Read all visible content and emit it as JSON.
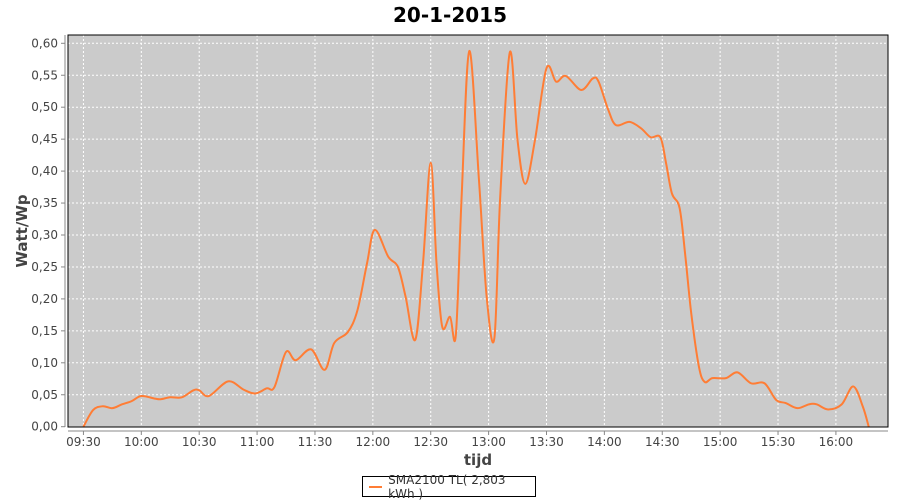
{
  "chart_data": {
    "type": "line",
    "title": "20-1-2015",
    "xlabel": "tijd",
    "ylabel": "Watt/Wp",
    "xlim": [
      "09:22",
      "16:27"
    ],
    "ylim": [
      0,
      0.6
    ],
    "grid": true,
    "legend_placement": "bottom",
    "plot_background": "#cbcbcb",
    "x_ticks": [
      "09:30",
      "10:00",
      "10:30",
      "11:00",
      "11:30",
      "12:00",
      "12:30",
      "13:00",
      "13:30",
      "14:00",
      "14:30",
      "15:00",
      "15:30",
      "16:00"
    ],
    "y_ticks": [
      "0,00",
      "0,05",
      "0,10",
      "0,15",
      "0,20",
      "0,25",
      "0,30",
      "0,35",
      "0,40",
      "0,45",
      "0,50",
      "0,55",
      "0,60"
    ],
    "series": [
      {
        "name": "SMA2100 TL( 2,803 kWh )",
        "color": "#ff7d35",
        "x": [
          "09:30",
          "09:35",
          "09:40",
          "09:45",
          "09:50",
          "09:55",
          "10:00",
          "10:07",
          "10:10",
          "10:15",
          "10:21",
          "10:27",
          "10:30",
          "10:35",
          "10:45",
          "10:53",
          "10:59",
          "11:05",
          "11:09",
          "11:15",
          "11:20",
          "11:28",
          "11:35",
          "11:40",
          "11:47",
          "11:52",
          "11:57",
          "12:01",
          "12:08",
          "12:13",
          "12:17",
          "12:22",
          "12:26",
          "12:30",
          "12:33",
          "12:36",
          "12:40",
          "12:43",
          "12:46",
          "12:50",
          "12:55",
          "12:59",
          "13:03",
          "13:06",
          "13:11",
          "13:15",
          "13:19",
          "13:24",
          "13:30",
          "13:35",
          "13:40",
          "13:48",
          "13:54",
          "13:57",
          "14:02",
          "14:06",
          "14:13",
          "14:19",
          "14:24",
          "14:29",
          "14:32",
          "14:35",
          "14:39",
          "14:42",
          "14:45",
          "14:49",
          "14:52",
          "14:56",
          "15:03",
          "15:09",
          "15:16",
          "15:23",
          "15:29",
          "15:34",
          "15:40",
          "15:46",
          "15:50",
          "15:56",
          "16:03",
          "16:09",
          "16:14",
          "16:17"
        ],
        "y": [
          0,
          0.026,
          0.032,
          0.029,
          0.035,
          0.04,
          0.048,
          0.044,
          0.043,
          0.046,
          0.046,
          0.057,
          0.057,
          0.048,
          0.071,
          0.058,
          0.052,
          0.06,
          0.062,
          0.117,
          0.104,
          0.121,
          0.089,
          0.131,
          0.148,
          0.182,
          0.256,
          0.308,
          0.266,
          0.25,
          0.203,
          0.136,
          0.256,
          0.413,
          0.256,
          0.156,
          0.172,
          0.143,
          0.359,
          0.588,
          0.386,
          0.203,
          0.139,
          0.359,
          0.586,
          0.448,
          0.38,
          0.448,
          0.561,
          0.54,
          0.549,
          0.527,
          0.545,
          0.54,
          0.496,
          0.472,
          0.477,
          0.467,
          0.453,
          0.453,
          0.412,
          0.365,
          0.342,
          0.266,
          0.178,
          0.094,
          0.07,
          0.076,
          0.076,
          0.085,
          0.068,
          0.068,
          0.042,
          0.037,
          0.029,
          0.035,
          0.035,
          0.027,
          0.035,
          0.063,
          0.031,
          0
        ]
      }
    ]
  }
}
